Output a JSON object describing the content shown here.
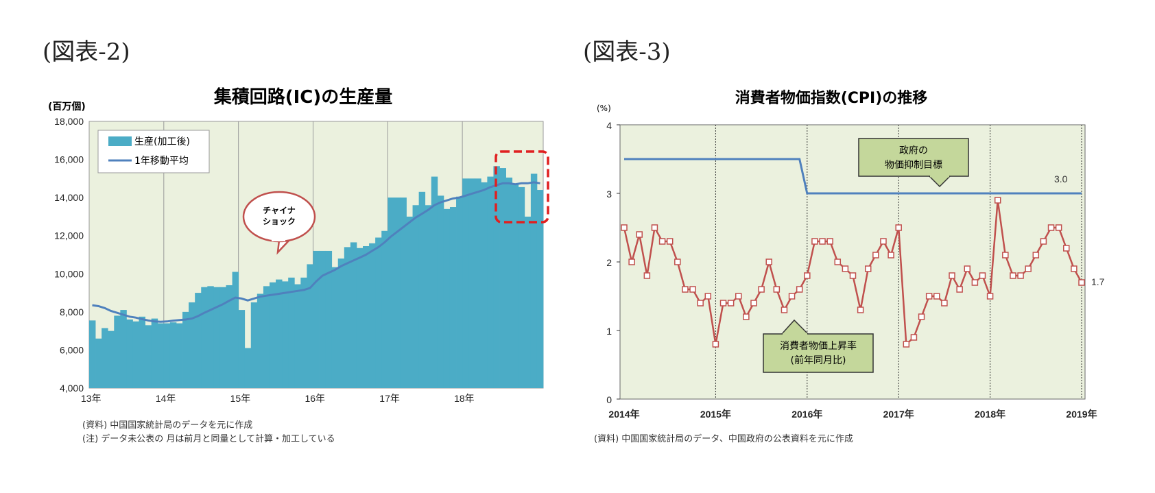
{
  "fig2_label": "(図表-2)",
  "fig3_label": "(図表-3)",
  "colors": {
    "bar": "#4bacc6",
    "ma_line": "#4f81bd",
    "plot_bg": "#ebf1de",
    "cpi_line": "#c0504d",
    "target_line": "#4f81bd",
    "callout_red": "#c0504d",
    "box_green": "#c4d79b",
    "highlight": "#e02020"
  },
  "chart_data": [
    {
      "type": "bar",
      "title": "集積回路(IC)の生産量",
      "ylabel": "(百万個)",
      "ylim": [
        4000,
        18000
      ],
      "yticks": [
        "4,000",
        "6,000",
        "8,000",
        "10,000",
        "12,000",
        "14,000",
        "16,000",
        "18,000"
      ],
      "xticks": [
        "13年",
        "14年",
        "15年",
        "16年",
        "17年",
        "18年"
      ],
      "legend": {
        "position": "top-left"
      },
      "series": [
        {
          "name": "生産(加工後)",
          "values": [
            7550,
            6600,
            7150,
            7000,
            7800,
            8100,
            7600,
            7500,
            7750,
            7300,
            7650,
            7400,
            7400,
            7450,
            7400,
            8000,
            8500,
            9000,
            9300,
            9350,
            9300,
            9300,
            9400,
            10100,
            8100,
            6100,
            8500,
            8950,
            9350,
            9550,
            9700,
            9600,
            9800,
            9450,
            9800,
            10500,
            11200,
            11200,
            11200,
            10350,
            10800,
            11400,
            11650,
            11350,
            11450,
            11600,
            11900,
            12250,
            14000,
            14000,
            14000,
            13000,
            13600,
            14300,
            13600,
            15100,
            14100,
            13400,
            13500,
            14050,
            15000,
            15000,
            15000,
            14800,
            15100,
            15650,
            15550,
            15050,
            14700,
            14550,
            13000,
            15250,
            14400
          ]
        },
        {
          "name": "1年移動平均",
          "values": [
            8350,
            8300,
            8200,
            8050,
            7950,
            7850,
            7750,
            7700,
            7620,
            7550,
            7500,
            7480,
            7500,
            7540,
            7570,
            7600,
            7650,
            7780,
            7950,
            8100,
            8250,
            8400,
            8580,
            8750,
            8700,
            8600,
            8700,
            8800,
            8850,
            8900,
            8950,
            9000,
            9050,
            9100,
            9150,
            9250,
            9600,
            9900,
            10050,
            10200,
            10400,
            10550,
            10700,
            10850,
            11000,
            11200,
            11400,
            11650,
            11950,
            12200,
            12450,
            12700,
            12950,
            13150,
            13350,
            13600,
            13750,
            13850,
            13950,
            14000,
            14100,
            14200,
            14300,
            14400,
            14550,
            14650,
            14750,
            14750,
            14700,
            14750,
            14750,
            14800,
            14750
          ]
        }
      ],
      "annotation": "チャイナ\nショック",
      "notes": [
        "(資料) 中国国家統計局のデータを元に作成",
        "(注) データ未公表の 月は前月と同量として計算・加工している"
      ]
    },
    {
      "type": "line",
      "title": "消費者物価指数(CPI)の推移",
      "ylabel": "(%)",
      "ylim": [
        0,
        4
      ],
      "yticks": [
        "0",
        "1",
        "2",
        "3",
        "4"
      ],
      "xticks": [
        "2014年",
        "2015年",
        "2016年",
        "2017年",
        "2018年",
        "2019年"
      ],
      "series": [
        {
          "name": "消費者物価上昇率(前年同月比)",
          "values": [
            2.5,
            2.0,
            2.4,
            1.8,
            2.5,
            2.3,
            2.3,
            2.0,
            1.6,
            1.6,
            1.4,
            1.5,
            0.8,
            1.4,
            1.4,
            1.5,
            1.2,
            1.4,
            1.6,
            2.0,
            1.6,
            1.3,
            1.5,
            1.6,
            1.8,
            2.3,
            2.3,
            2.3,
            2.0,
            1.9,
            1.8,
            1.3,
            1.9,
            2.1,
            2.3,
            2.1,
            2.5,
            0.8,
            0.9,
            1.2,
            1.5,
            1.5,
            1.4,
            1.8,
            1.6,
            1.9,
            1.7,
            1.8,
            1.5,
            2.9,
            2.1,
            1.8,
            1.8,
            1.9,
            2.1,
            2.3,
            2.5,
            2.5,
            2.2,
            1.9,
            1.7
          ]
        },
        {
          "name": "物価抑制目標",
          "values": [
            3.5,
            3.5,
            3.5,
            3.5,
            3.5,
            3.5,
            3.5,
            3.5,
            3.5,
            3.5,
            3.5,
            3.5,
            3.5,
            3.5,
            3.5,
            3.5,
            3.5,
            3.5,
            3.5,
            3.5,
            3.5,
            3.5,
            3.5,
            3.5,
            3.0,
            3.0,
            3.0,
            3.0,
            3.0,
            3.0,
            3.0,
            3.0,
            3.0,
            3.0,
            3.0,
            3.0,
            3.0,
            3.0,
            3.0,
            3.0,
            3.0,
            3.0,
            3.0,
            3.0,
            3.0,
            3.0,
            3.0,
            3.0,
            3.0,
            3.0,
            3.0,
            3.0,
            3.0,
            3.0,
            3.0,
            3.0,
            3.0,
            3.0,
            3.0,
            3.0,
            3.0
          ]
        }
      ],
      "end_label_target": "3.0",
      "end_label_cpi": "1.7",
      "callout_target": [
        "政府の",
        "物価抑制目標"
      ],
      "callout_cpi": [
        "消費者物価上昇率",
        "(前年同月比)"
      ],
      "notes": [
        "(資料) 中国国家統計局のデータ、中国政府の公表資料を元に作成"
      ]
    }
  ]
}
